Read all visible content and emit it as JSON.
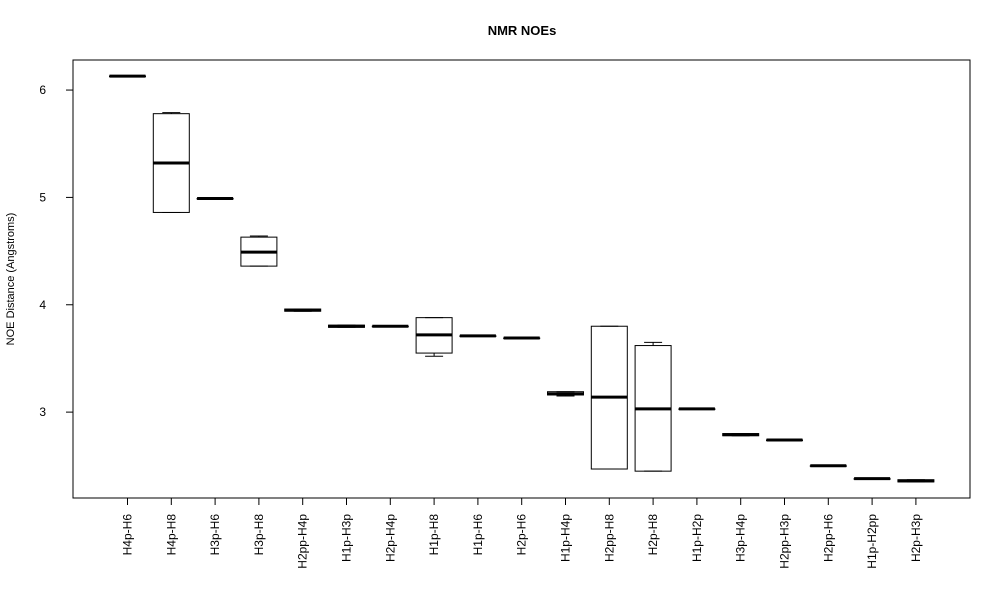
{
  "chart_data": {
    "type": "boxplot",
    "title": "NMR NOEs",
    "xlabel": "",
    "ylabel": "NOE Distance (Angstroms)",
    "ylim": [
      2.2,
      6.28
    ],
    "yticks": [
      3,
      4,
      5,
      6
    ],
    "grid": false,
    "categories": [
      "H4p-H6",
      "H4p-H8",
      "H3p-H6",
      "H3p-H8",
      "H2pp-H4p",
      "H1p-H3p",
      "H2p-H4p",
      "H1p-H8",
      "H1p-H6",
      "H2p-H6",
      "H1p-H4p",
      "H2pp-H8",
      "H2p-H8",
      "H1p-H2p",
      "H3p-H4p",
      "H2pp-H3p",
      "H2pp-H6",
      "H1p-H2pp",
      "H2p-H3p"
    ],
    "boxes": [
      {
        "min": 6.13,
        "q1": 6.13,
        "median": 6.13,
        "q3": 6.13,
        "max": 6.13
      },
      {
        "min": 4.86,
        "q1": 4.86,
        "median": 5.32,
        "q3": 5.78,
        "max": 5.79
      },
      {
        "min": 4.99,
        "q1": 4.99,
        "median": 4.99,
        "q3": 4.99,
        "max": 4.99
      },
      {
        "min": 4.36,
        "q1": 4.36,
        "median": 4.49,
        "q3": 4.63,
        "max": 4.64
      },
      {
        "min": 3.94,
        "q1": 3.94,
        "median": 3.95,
        "q3": 3.96,
        "max": 3.96
      },
      {
        "min": 3.79,
        "q1": 3.79,
        "median": 3.8,
        "q3": 3.81,
        "max": 3.81
      },
      {
        "min": 3.8,
        "q1": 3.8,
        "median": 3.8,
        "q3": 3.8,
        "max": 3.8
      },
      {
        "min": 3.52,
        "q1": 3.55,
        "median": 3.72,
        "q3": 3.88,
        "max": 3.88
      },
      {
        "min": 3.71,
        "q1": 3.71,
        "median": 3.71,
        "q3": 3.71,
        "max": 3.71
      },
      {
        "min": 3.69,
        "q1": 3.69,
        "median": 3.69,
        "q3": 3.69,
        "max": 3.69
      },
      {
        "min": 3.15,
        "q1": 3.16,
        "median": 3.17,
        "q3": 3.19,
        "max": 3.19
      },
      {
        "min": 2.47,
        "q1": 2.47,
        "median": 3.14,
        "q3": 3.8,
        "max": 3.8
      },
      {
        "min": 2.45,
        "q1": 2.45,
        "median": 3.03,
        "q3": 3.62,
        "max": 3.65
      },
      {
        "min": 3.03,
        "q1": 3.03,
        "median": 3.03,
        "q3": 3.03,
        "max": 3.03
      },
      {
        "min": 2.78,
        "q1": 2.78,
        "median": 2.79,
        "q3": 2.8,
        "max": 2.8
      },
      {
        "min": 2.74,
        "q1": 2.74,
        "median": 2.74,
        "q3": 2.74,
        "max": 2.74
      },
      {
        "min": 2.5,
        "q1": 2.5,
        "median": 2.5,
        "q3": 2.5,
        "max": 2.5
      },
      {
        "min": 2.38,
        "q1": 2.38,
        "median": 2.38,
        "q3": 2.38,
        "max": 2.38
      },
      {
        "min": 2.35,
        "q1": 2.35,
        "median": 2.36,
        "q3": 2.37,
        "max": 2.37
      }
    ]
  }
}
